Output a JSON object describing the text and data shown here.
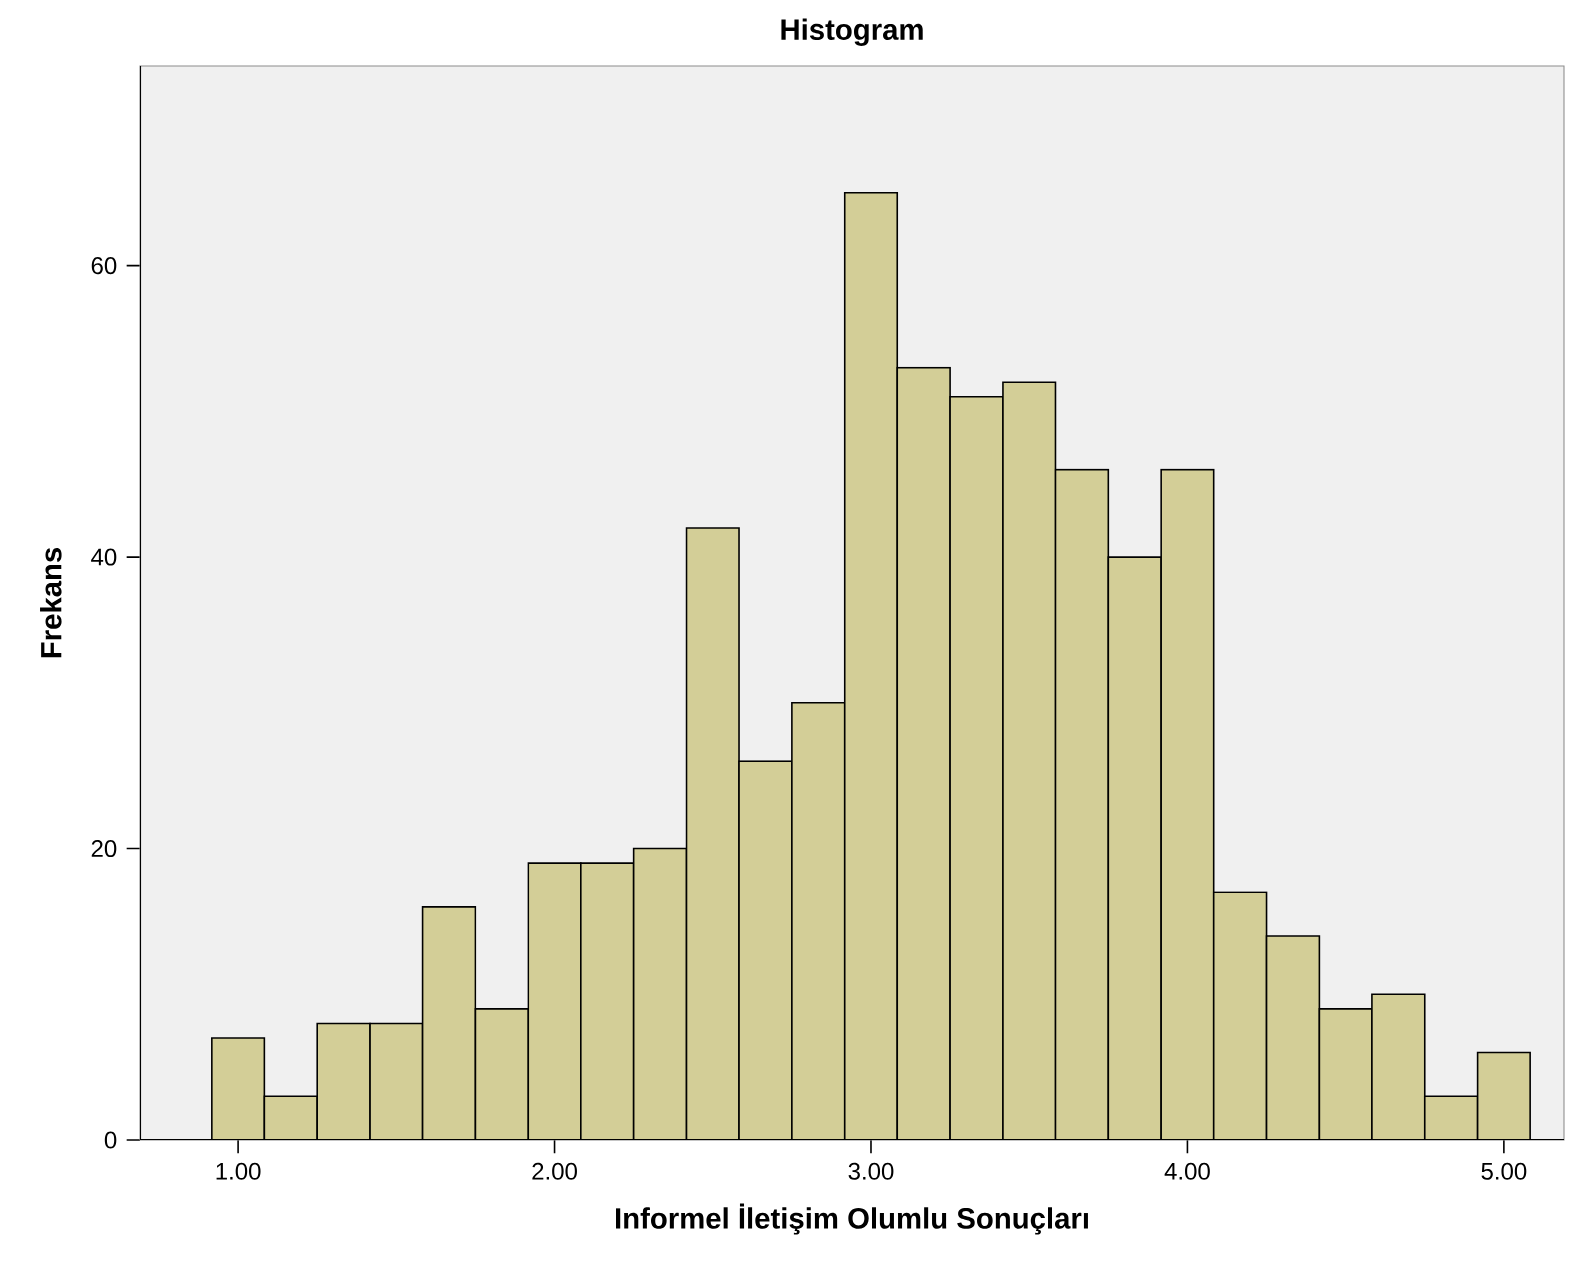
{
  "chart_data": {
    "type": "histogram",
    "title": "Histogram",
    "xlabel": "Informel İletişim Olumlu Sonuçları",
    "ylabel": "Frekans",
    "bins": [
      0.917,
      1.083,
      1.25,
      1.417,
      1.583,
      1.75,
      1.917,
      2.083,
      2.25,
      2.417,
      2.583,
      2.75,
      2.917,
      3.083,
      3.25,
      3.417,
      3.583,
      3.75,
      3.917,
      4.083,
      4.25,
      4.417,
      4.583,
      4.75,
      4.917,
      5.083
    ],
    "values": [
      7,
      3,
      8,
      8,
      16,
      9,
      19,
      19,
      20,
      42,
      26,
      30,
      65,
      53,
      51,
      52,
      46,
      40,
      46,
      17,
      14,
      9,
      10,
      3,
      6
    ],
    "color": "#d3ce97",
    "xlim": [
      0.69,
      5.19
    ],
    "xticks": [
      {
        "value": 1,
        "label": "1.00"
      },
      {
        "value": 2,
        "label": "2.00"
      },
      {
        "value": 3,
        "label": "3.00"
      },
      {
        "value": 4,
        "label": "4.00"
      },
      {
        "value": 5,
        "label": "5.00"
      }
    ],
    "ylim": [
      0,
      73.7
    ],
    "yticks": [
      0,
      20,
      40,
      60
    ]
  }
}
